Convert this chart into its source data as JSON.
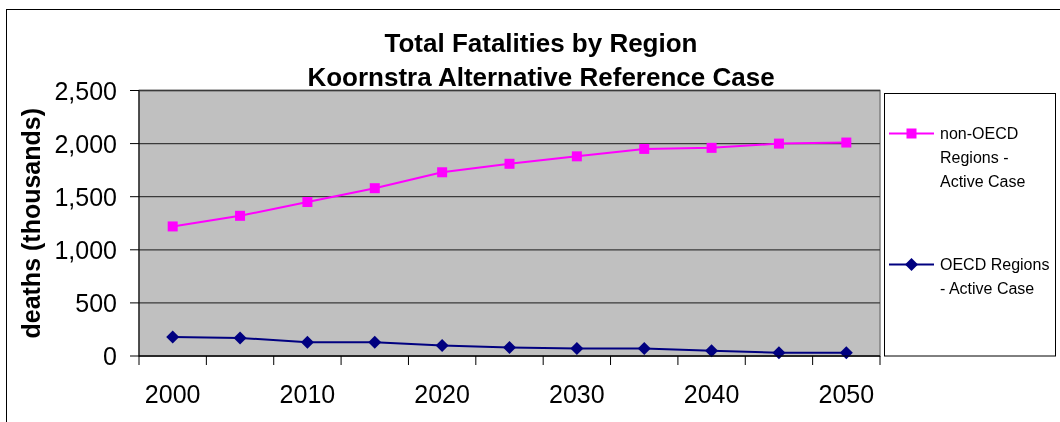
{
  "chart_data": {
    "type": "line",
    "title": "Total Fatalities by Region",
    "subtitle": "Koornstra Alternative Reference Case",
    "ylabel": "deaths (thousands)",
    "categories": [
      "2000",
      null,
      "2010",
      null,
      "2020",
      null,
      "2030",
      null,
      "2040",
      null,
      "2050"
    ],
    "series": [
      {
        "name": "non-OECD Regions - Active Case",
        "color": "#ff00ff",
        "marker": "square",
        "values": [
          1220,
          1320,
          1450,
          1580,
          1730,
          1810,
          1880,
          1950,
          1960,
          2000,
          2010
        ]
      },
      {
        "name": "OECD Regions - Active Case",
        "color": "#000080",
        "marker": "diamond",
        "values": [
          180,
          170,
          130,
          130,
          100,
          80,
          70,
          70,
          50,
          30,
          30
        ]
      }
    ],
    "ylim": [
      0,
      2500
    ],
    "yticks": [
      0,
      500,
      {
        "value": 1000,
        "label": "1,000"
      },
      {
        "value": 1500,
        "label": "1,500"
      },
      {
        "value": 2000,
        "label": "2,000"
      },
      {
        "value": 2500,
        "label": "2,500"
      }
    ],
    "grid": "y",
    "legend": "right"
  }
}
